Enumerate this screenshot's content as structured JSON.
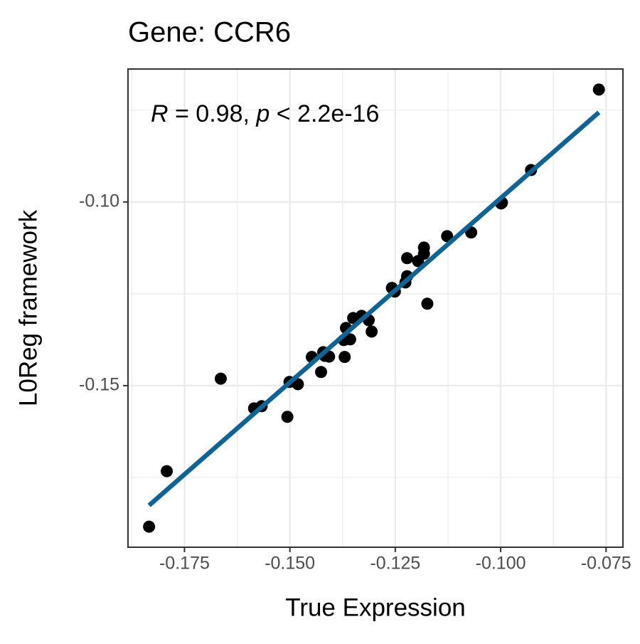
{
  "chart_data": {
    "type": "scatter",
    "title": "Gene: CCR6",
    "xlabel": "True Expression",
    "ylabel": "L0Reg framework",
    "annotation": {
      "r_symbol": "R",
      "r_text": " = 0.98, ",
      "p_symbol": "p",
      "p_text": " < 2.2e-16"
    },
    "xlim": [
      -0.1884,
      -0.071
    ],
    "ylim": [
      -0.194,
      -0.0638
    ],
    "xticks": [
      -0.175,
      {
        "value": -0.15,
        "label": "-0.150"
      },
      -0.125,
      {
        "value": -0.1,
        "label": "-0.100"
      },
      -0.075
    ],
    "yticks": [
      {
        "value": -0.1,
        "label": "-0.10"
      },
      {
        "value": -0.15,
        "label": "-0.15"
      }
    ],
    "x_minor_ticks": [
      -0.1875,
      -0.1625,
      -0.1375,
      -0.1125,
      -0.0875
    ],
    "y_minor_ticks": [
      -0.175,
      -0.125,
      -0.075
    ],
    "grid": true,
    "color": "#000000",
    "x": [
      -0.0767,
      -0.0928,
      -0.0999,
      -0.0997,
      -0.107,
      -0.1127,
      -0.1182,
      -0.1182,
      -0.1222,
      -0.1196,
      -0.1222,
      -0.1226,
      -0.1174,
      -0.1258,
      -0.1251,
      -0.133,
      -0.135,
      -0.1313,
      -0.1367,
      -0.1306,
      -0.1357,
      -0.1372,
      -0.1417,
      -0.1448,
      -0.1421,
      -0.1407,
      -0.1426,
      -0.137,
      -0.1501,
      -0.1481,
      -0.1664,
      -0.1585,
      -0.1567,
      -0.1506,
      -0.1792,
      -0.1834
    ],
    "y": [
      -0.0694,
      -0.0913,
      -0.1004,
      -0.1002,
      -0.1083,
      -0.1093,
      -0.1124,
      -0.1141,
      -0.1153,
      -0.1161,
      -0.1202,
      -0.1219,
      -0.1277,
      -0.1234,
      -0.1244,
      -0.131,
      -0.1316,
      -0.1322,
      -0.1343,
      -0.1353,
      -0.1374,
      -0.1376,
      -0.1419,
      -0.1422,
      -0.1409,
      -0.1421,
      -0.1463,
      -0.1422,
      -0.149,
      -0.1496,
      -0.1481,
      -0.1562,
      -0.1556,
      -0.1585,
      -0.1733,
      -0.1884
    ],
    "fit_line": {
      "color": "#0f6496",
      "x": [
        -0.1834,
        -0.0767
      ],
      "y": [
        -0.1826,
        -0.0756
      ]
    }
  }
}
